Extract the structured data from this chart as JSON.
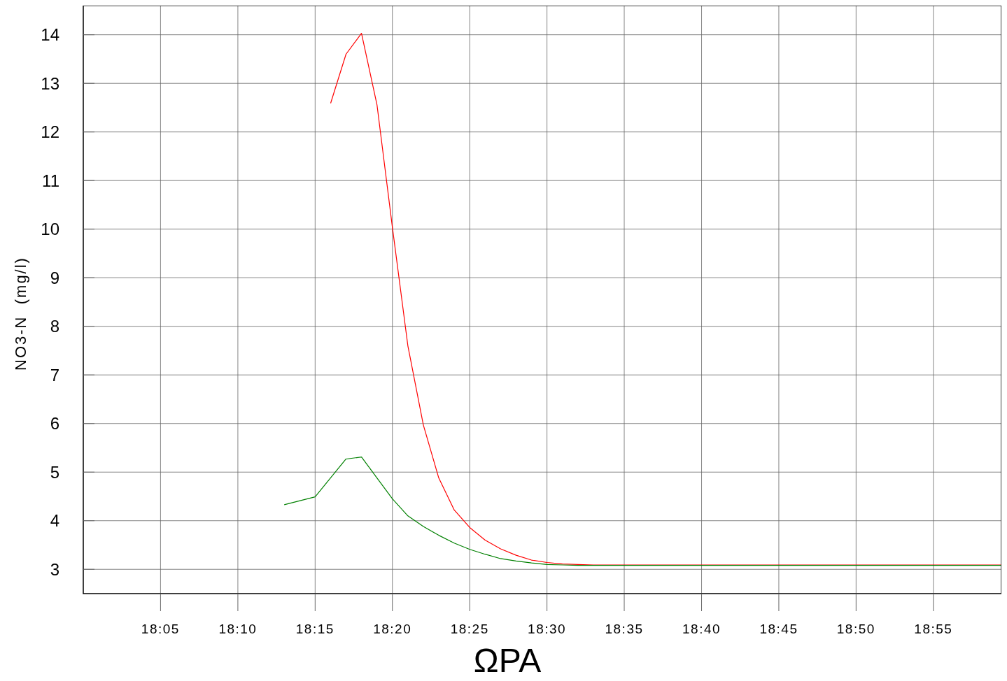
{
  "chart_data": {
    "type": "line",
    "xlabel": "ΩΡΑ",
    "ylabel": "NO3-N  (mg/l)",
    "xlim": [
      18,
      18.99
    ],
    "ylim": [
      2.5,
      14.6
    ],
    "xticks": [
      {
        "value": 18.0833,
        "label": "18:05"
      },
      {
        "value": 18.1667,
        "label": "18:10"
      },
      {
        "value": 18.25,
        "label": "18:15"
      },
      {
        "value": 18.3333,
        "label": "18:20"
      },
      {
        "value": 18.4167,
        "label": "18:25"
      },
      {
        "value": 18.5,
        "label": "18:30"
      },
      {
        "value": 18.5833,
        "label": "18:35"
      },
      {
        "value": 18.6667,
        "label": "18:40"
      },
      {
        "value": 18.75,
        "label": "18:45"
      },
      {
        "value": 18.8333,
        "label": "18:50"
      },
      {
        "value": 18.9167,
        "label": "18:55"
      }
    ],
    "yticks": [
      3,
      4,
      5,
      6,
      7,
      8,
      9,
      10,
      11,
      12,
      13,
      14
    ],
    "grid": true,
    "marker": "none",
    "line_style": "solid",
    "series": [
      {
        "color": "#ff0000",
        "x": [
          18.2667,
          18.2833,
          18.3,
          18.3167,
          18.3333,
          18.35,
          18.3667,
          18.3833,
          18.4,
          18.4167,
          18.4333,
          18.45,
          18.4667,
          18.4833,
          18.5,
          18.5167,
          18.5333,
          18.55,
          18.99
        ],
        "values": [
          12.59,
          13.6,
          14.03,
          12.56,
          10.04,
          7.6,
          5.97,
          4.88,
          4.22,
          3.86,
          3.6,
          3.42,
          3.29,
          3.19,
          3.14,
          3.11,
          3.1,
          3.09,
          3.09
        ]
      },
      {
        "color": "#008000",
        "x": [
          18.2167,
          18.25,
          18.2833,
          18.3,
          18.3167,
          18.3333,
          18.35,
          18.3667,
          18.3833,
          18.4,
          18.4167,
          18.4333,
          18.45,
          18.4667,
          18.4833,
          18.5,
          18.5167,
          18.5333,
          18.99
        ],
        "values": [
          4.33,
          4.49,
          5.27,
          5.31,
          4.88,
          4.45,
          4.1,
          3.88,
          3.7,
          3.54,
          3.41,
          3.31,
          3.22,
          3.17,
          3.13,
          3.1,
          3.09,
          3.08,
          3.08
        ]
      }
    ]
  }
}
